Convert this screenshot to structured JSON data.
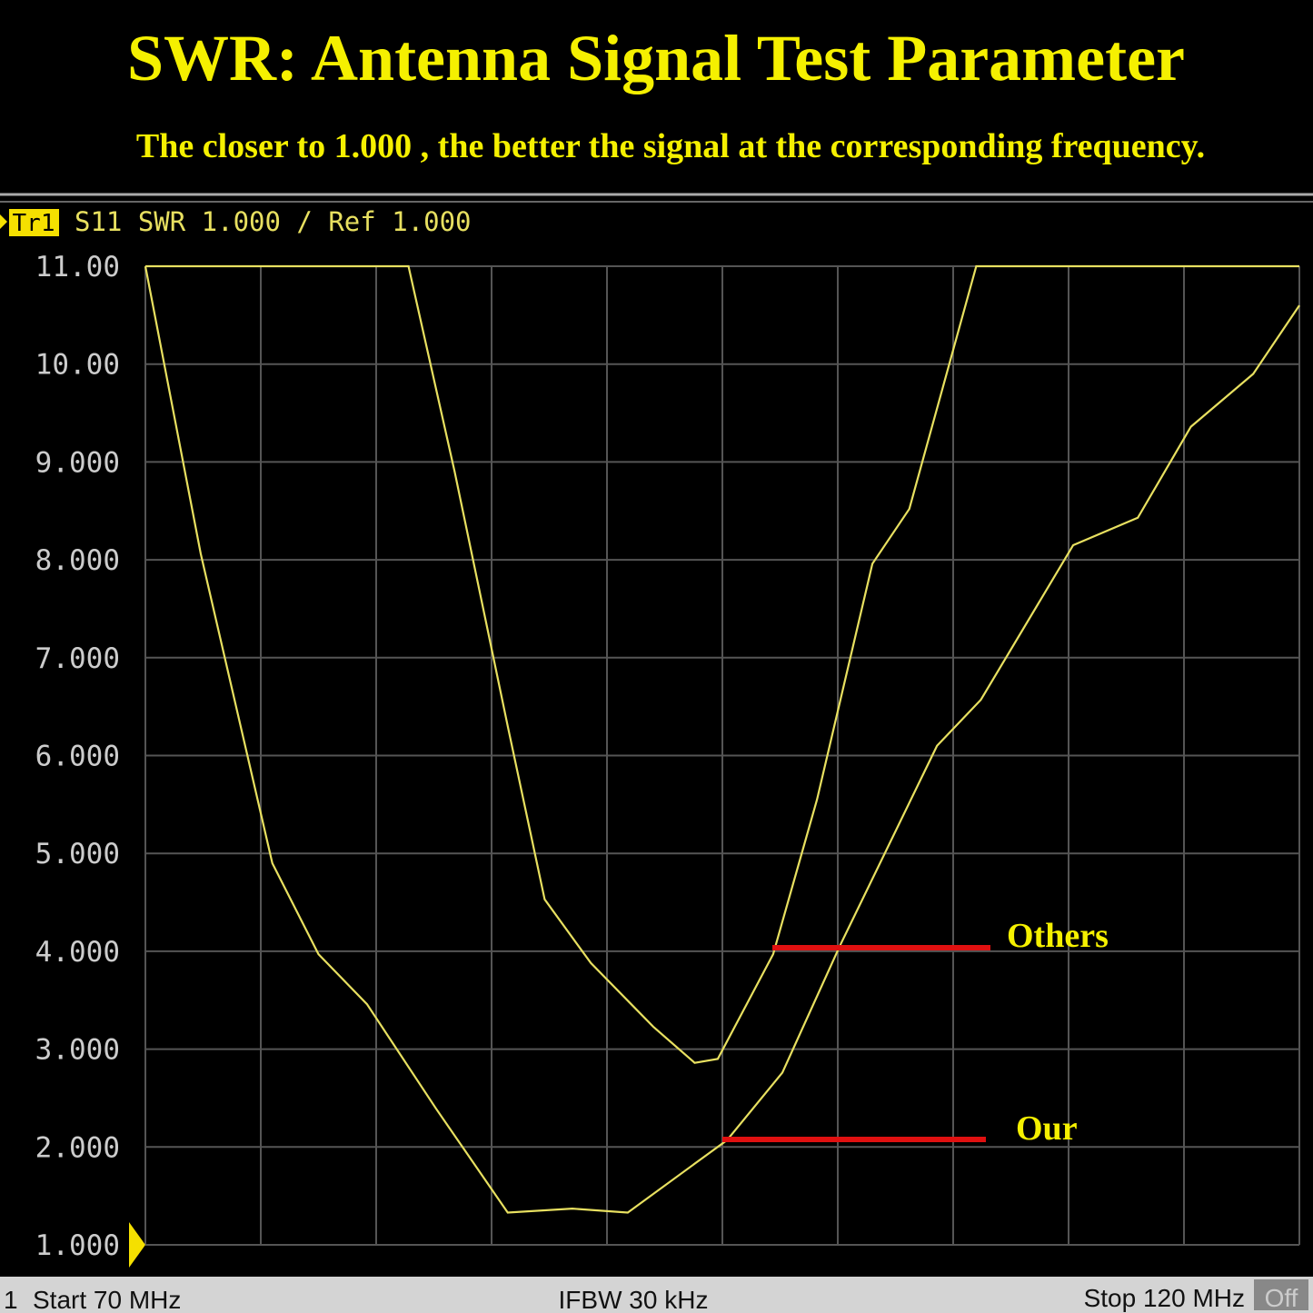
{
  "chart_data": {
    "type": "line",
    "title": "SWR: Antenna Signal Test Parameter",
    "subtitle": "The closer to 1.000 , the better the signal at the corresponding frequency.",
    "header": {
      "trace": "Tr1",
      "text": "S11 SWR 1.000 / Ref 1.000"
    },
    "footer": {
      "channel": "1",
      "start": "Start 70 MHz",
      "ifbw": "IFBW 30 kHz",
      "stop": "Stop 120 MHz",
      "off": "Off"
    },
    "xlim": [
      70,
      120
    ],
    "xticks": [
      70,
      75,
      80,
      85,
      90,
      95,
      100,
      105,
      110,
      115,
      120
    ],
    "ylim": [
      1,
      11
    ],
    "yticks": [
      {
        "value": 1,
        "label": "1.000"
      },
      {
        "value": 2,
        "label": "2.000"
      },
      {
        "value": 3,
        "label": "3.000"
      },
      {
        "value": 4,
        "label": "4.000"
      },
      {
        "value": 5,
        "label": "5.000"
      },
      {
        "value": 6,
        "label": "6.000"
      },
      {
        "value": 7,
        "label": "7.000"
      },
      {
        "value": 8,
        "label": "8.000"
      },
      {
        "value": 9,
        "label": "9.000"
      },
      {
        "value": 10,
        "label": "10.00"
      },
      {
        "value": 11,
        "label": "11.00"
      }
    ],
    "grid": true,
    "series": [
      {
        "name": "Our",
        "color": "#e8e060",
        "x": [
          70,
          72.4,
          75.5,
          77.5,
          79.6,
          82.6,
          85.7,
          88.5,
          90.9,
          95.2,
          97.6,
          100.1,
          104.3,
          106.2,
          110.2,
          113,
          115.3,
          118,
          120
        ],
        "values": [
          11,
          8.06,
          4.9,
          3.97,
          3.46,
          2.39,
          1.33,
          1.37,
          1.33,
          2.07,
          2.76,
          4.06,
          6.1,
          6.57,
          8.15,
          8.43,
          9.36,
          9.9,
          10.6
        ]
      },
      {
        "name": "Others",
        "color": "#e8e060",
        "x": [
          70,
          81.4,
          83.4,
          85.7,
          87.3,
          89.3,
          92,
          93.8,
          94.8,
          97.2,
          99.1,
          101.5,
          103.1,
          106,
          120
        ],
        "values": [
          11,
          11,
          8.9,
          6.3,
          4.53,
          3.88,
          3.23,
          2.86,
          2.9,
          3.97,
          5.55,
          7.96,
          8.52,
          11,
          11
        ]
      }
    ]
  }
}
